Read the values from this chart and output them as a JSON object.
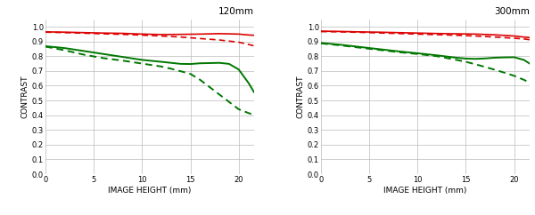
{
  "title_left": "120mm",
  "title_right": "300mm",
  "xlabel": "IMAGE HEIGHT (mm)",
  "ylabel": "CONTRAST",
  "xlim": [
    0,
    21.6
  ],
  "ylim": [
    0,
    1.05
  ],
  "xticks": [
    0,
    5,
    10,
    15,
    20
  ],
  "yticks": [
    0,
    0.1,
    0.2,
    0.3,
    0.4,
    0.5,
    0.6,
    0.7,
    0.8,
    0.9,
    1.0
  ],
  "color_red": "#dd0000",
  "color_green": "#007700",
  "bg_color": "#ffffff",
  "left": {
    "red_solid": [
      [
        0,
        0.965
      ],
      [
        2,
        0.963
      ],
      [
        4,
        0.96
      ],
      [
        6,
        0.957
      ],
      [
        8,
        0.955
      ],
      [
        10,
        0.95
      ],
      [
        12,
        0.947
      ],
      [
        14,
        0.948
      ],
      [
        16,
        0.95
      ],
      [
        18,
        0.953
      ],
      [
        20,
        0.95
      ],
      [
        21,
        0.944
      ],
      [
        21.6,
        0.942
      ]
    ],
    "red_dashed": [
      [
        0,
        0.963
      ],
      [
        2,
        0.96
      ],
      [
        4,
        0.956
      ],
      [
        6,
        0.952
      ],
      [
        8,
        0.948
      ],
      [
        10,
        0.943
      ],
      [
        12,
        0.937
      ],
      [
        14,
        0.93
      ],
      [
        16,
        0.92
      ],
      [
        18,
        0.91
      ],
      [
        20,
        0.895
      ],
      [
        21,
        0.88
      ],
      [
        21.6,
        0.87
      ]
    ],
    "green_solid": [
      [
        0,
        0.868
      ],
      [
        2,
        0.855
      ],
      [
        4,
        0.835
      ],
      [
        6,
        0.815
      ],
      [
        8,
        0.795
      ],
      [
        10,
        0.775
      ],
      [
        12,
        0.762
      ],
      [
        13,
        0.755
      ],
      [
        14,
        0.748
      ],
      [
        15,
        0.747
      ],
      [
        16,
        0.752
      ],
      [
        18,
        0.755
      ],
      [
        19,
        0.748
      ],
      [
        20,
        0.71
      ],
      [
        21,
        0.62
      ],
      [
        21.6,
        0.555
      ]
    ],
    "green_dashed": [
      [
        0,
        0.865
      ],
      [
        2,
        0.84
      ],
      [
        4,
        0.81
      ],
      [
        6,
        0.787
      ],
      [
        8,
        0.77
      ],
      [
        10,
        0.75
      ],
      [
        12,
        0.73
      ],
      [
        13,
        0.715
      ],
      [
        14,
        0.698
      ],
      [
        15,
        0.68
      ],
      [
        16,
        0.64
      ],
      [
        17,
        0.59
      ],
      [
        18,
        0.54
      ],
      [
        19,
        0.49
      ],
      [
        20,
        0.44
      ],
      [
        21,
        0.415
      ],
      [
        21.6,
        0.4
      ]
    ]
  },
  "right": {
    "red_solid": [
      [
        0,
        0.97
      ],
      [
        2,
        0.968
      ],
      [
        4,
        0.965
      ],
      [
        6,
        0.963
      ],
      [
        8,
        0.96
      ],
      [
        10,
        0.957
      ],
      [
        12,
        0.954
      ],
      [
        14,
        0.952
      ],
      [
        16,
        0.95
      ],
      [
        18,
        0.945
      ],
      [
        20,
        0.937
      ],
      [
        21,
        0.93
      ],
      [
        21.6,
        0.927
      ]
    ],
    "red_dashed": [
      [
        0,
        0.967
      ],
      [
        2,
        0.965
      ],
      [
        4,
        0.962
      ],
      [
        6,
        0.958
      ],
      [
        8,
        0.954
      ],
      [
        10,
        0.95
      ],
      [
        12,
        0.946
      ],
      [
        14,
        0.942
      ],
      [
        16,
        0.937
      ],
      [
        18,
        0.93
      ],
      [
        20,
        0.922
      ],
      [
        21,
        0.917
      ],
      [
        21.6,
        0.912
      ]
    ],
    "green_solid": [
      [
        0,
        0.89
      ],
      [
        2,
        0.878
      ],
      [
        4,
        0.863
      ],
      [
        6,
        0.848
      ],
      [
        8,
        0.833
      ],
      [
        10,
        0.82
      ],
      [
        12,
        0.806
      ],
      [
        13,
        0.798
      ],
      [
        14,
        0.79
      ],
      [
        15,
        0.784
      ],
      [
        16,
        0.782
      ],
      [
        17,
        0.785
      ],
      [
        18,
        0.79
      ],
      [
        19,
        0.792
      ],
      [
        20,
        0.793
      ],
      [
        21,
        0.775
      ],
      [
        21.6,
        0.75
      ]
    ],
    "green_dashed": [
      [
        0,
        0.887
      ],
      [
        2,
        0.874
      ],
      [
        4,
        0.858
      ],
      [
        6,
        0.843
      ],
      [
        8,
        0.828
      ],
      [
        10,
        0.815
      ],
      [
        12,
        0.8
      ],
      [
        13,
        0.788
      ],
      [
        14,
        0.775
      ],
      [
        15,
        0.762
      ],
      [
        16,
        0.745
      ],
      [
        17,
        0.727
      ],
      [
        18,
        0.708
      ],
      [
        19,
        0.688
      ],
      [
        20,
        0.667
      ],
      [
        21,
        0.64
      ],
      [
        21.6,
        0.62
      ]
    ]
  }
}
